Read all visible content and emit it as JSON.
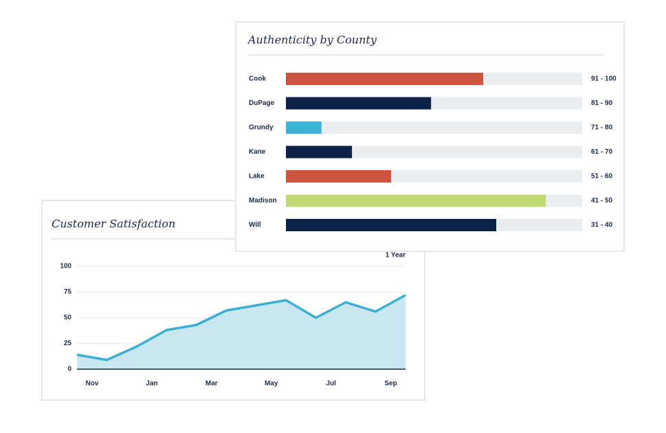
{
  "chart_data": [
    {
      "type": "area",
      "title": "Customer Satisfaction",
      "range_label": "1 Year",
      "categories": [
        "Nov",
        null,
        "Jan",
        null,
        "Mar",
        null,
        "May",
        null,
        "Jul",
        null,
        "Sep",
        null
      ],
      "values": [
        14,
        9,
        22,
        38,
        43,
        57,
        62,
        67,
        50,
        65,
        56,
        72
      ],
      "color": "#3aaed3",
      "fill_color": "#c5e6f0",
      "ylim": [
        0,
        100
      ],
      "yticks": [
        0,
        25,
        50,
        75,
        100
      ],
      "grid": true
    },
    {
      "type": "hbar",
      "title": "Authenticity by County",
      "categories": [
        "Cook",
        "DuPage",
        "Grundy",
        "Kane",
        "Lake",
        "Madison",
        "Will"
      ],
      "values": [
        66.6,
        49,
        12,
        22.3,
        35.5,
        87.7,
        71
      ],
      "colors": [
        "#cc5540",
        "#0c2249",
        "#3db3d6",
        "#0c2249",
        "#cc5540",
        "#c0da74",
        "#0c2249"
      ],
      "ranges": [
        "91 - 100",
        "81 - 90",
        "71 - 80",
        "61 - 70",
        "51 - 60",
        "41 - 50",
        "31 - 40"
      ],
      "xlim": [
        0,
        100
      ],
      "track_color": "#ebeef1"
    }
  ]
}
